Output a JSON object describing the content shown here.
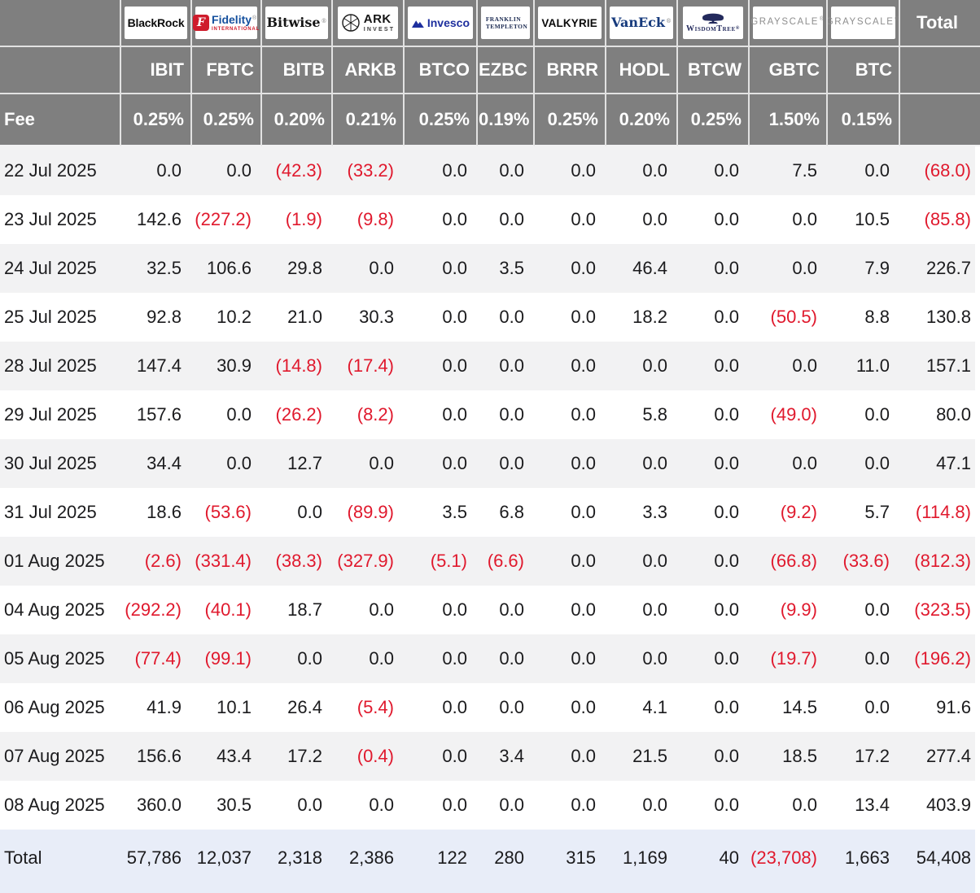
{
  "colors": {
    "header_bg": "#7f7f7f",
    "header_text": "#ffffff",
    "row_stripe": "#f2f2f3",
    "row_plain": "#ffffff",
    "total_row_bg": "#e8edf8",
    "negative_value": "#e0192d",
    "text": "#1b1b1d",
    "fidelity_red": "#cf1b2b"
  },
  "brands": {
    "blackrock": "BlackRock",
    "fidelity": {
      "initial": "F",
      "name": "Fidelity",
      "sub": "INTERNATIONAL",
      "reg": "®"
    },
    "bitwise": {
      "name": "Bitwise",
      "reg": "®"
    },
    "ark": {
      "name": "ARK",
      "sub": "INVEST"
    },
    "invesco": "Invesco",
    "franklin": {
      "line1": "FRANKLIN",
      "line2": "TEMPLETON"
    },
    "valkyrie": "VALKYRIE",
    "vaneck": {
      "name": "VanEck",
      "reg": "®"
    },
    "wisdomtree": {
      "name": "WisdomTree",
      "reg": "®"
    },
    "grayscale_gbtc": {
      "name": "GRAYSCALE",
      "reg": "®"
    },
    "grayscale_btc": {
      "name": "GRAYSCALE",
      "reg": "®"
    }
  },
  "chart_data": {
    "type": "table",
    "fee_row_label": "Fee",
    "total_column_label": "Total",
    "columns": [
      {
        "ticker": "IBIT",
        "fee": "0.25%",
        "issuer": "BlackRock"
      },
      {
        "ticker": "FBTC",
        "fee": "0.25%",
        "issuer": "Fidelity"
      },
      {
        "ticker": "BITB",
        "fee": "0.20%",
        "issuer": "Bitwise"
      },
      {
        "ticker": "ARKB",
        "fee": "0.21%",
        "issuer": "ARK Invest"
      },
      {
        "ticker": "BTCO",
        "fee": "0.25%",
        "issuer": "Invesco"
      },
      {
        "ticker": "EZBC",
        "fee": "0.19%",
        "issuer": "Franklin Templeton"
      },
      {
        "ticker": "BRRR",
        "fee": "0.25%",
        "issuer": "Valkyrie"
      },
      {
        "ticker": "HODL",
        "fee": "0.20%",
        "issuer": "VanEck"
      },
      {
        "ticker": "BTCW",
        "fee": "0.25%",
        "issuer": "WisdomTree"
      },
      {
        "ticker": "GBTC",
        "fee": "1.50%",
        "issuer": "Grayscale"
      },
      {
        "ticker": "BTC",
        "fee": "0.15%",
        "issuer": "Grayscale"
      }
    ],
    "rows": [
      {
        "date": "22 Jul 2025",
        "values": [
          "0.0",
          "0.0",
          "(42.3)",
          "(33.2)",
          "0.0",
          "0.0",
          "0.0",
          "0.0",
          "0.0",
          "7.5",
          "0.0",
          "(68.0)"
        ]
      },
      {
        "date": "23 Jul 2025",
        "values": [
          "142.6",
          "(227.2)",
          "(1.9)",
          "(9.8)",
          "0.0",
          "0.0",
          "0.0",
          "0.0",
          "0.0",
          "0.0",
          "10.5",
          "(85.8)"
        ]
      },
      {
        "date": "24 Jul 2025",
        "values": [
          "32.5",
          "106.6",
          "29.8",
          "0.0",
          "0.0",
          "3.5",
          "0.0",
          "46.4",
          "0.0",
          "0.0",
          "7.9",
          "226.7"
        ]
      },
      {
        "date": "25 Jul 2025",
        "values": [
          "92.8",
          "10.2",
          "21.0",
          "30.3",
          "0.0",
          "0.0",
          "0.0",
          "18.2",
          "0.0",
          "(50.5)",
          "8.8",
          "130.8"
        ]
      },
      {
        "date": "28 Jul 2025",
        "values": [
          "147.4",
          "30.9",
          "(14.8)",
          "(17.4)",
          "0.0",
          "0.0",
          "0.0",
          "0.0",
          "0.0",
          "0.0",
          "11.0",
          "157.1"
        ]
      },
      {
        "date": "29 Jul 2025",
        "values": [
          "157.6",
          "0.0",
          "(26.2)",
          "(8.2)",
          "0.0",
          "0.0",
          "0.0",
          "5.8",
          "0.0",
          "(49.0)",
          "0.0",
          "80.0"
        ]
      },
      {
        "date": "30 Jul 2025",
        "values": [
          "34.4",
          "0.0",
          "12.7",
          "0.0",
          "0.0",
          "0.0",
          "0.0",
          "0.0",
          "0.0",
          "0.0",
          "0.0",
          "47.1"
        ]
      },
      {
        "date": "31 Jul 2025",
        "values": [
          "18.6",
          "(53.6)",
          "0.0",
          "(89.9)",
          "3.5",
          "6.8",
          "0.0",
          "3.3",
          "0.0",
          "(9.2)",
          "5.7",
          "(114.8)"
        ]
      },
      {
        "date": "01 Aug 2025",
        "values": [
          "(2.6)",
          "(331.4)",
          "(38.3)",
          "(327.9)",
          "(5.1)",
          "(6.6)",
          "0.0",
          "0.0",
          "0.0",
          "(66.8)",
          "(33.6)",
          "(812.3)"
        ]
      },
      {
        "date": "04 Aug 2025",
        "values": [
          "(292.2)",
          "(40.1)",
          "18.7",
          "0.0",
          "0.0",
          "0.0",
          "0.0",
          "0.0",
          "0.0",
          "(9.9)",
          "0.0",
          "(323.5)"
        ]
      },
      {
        "date": "05 Aug 2025",
        "values": [
          "(77.4)",
          "(99.1)",
          "0.0",
          "0.0",
          "0.0",
          "0.0",
          "0.0",
          "0.0",
          "0.0",
          "(19.7)",
          "0.0",
          "(196.2)"
        ]
      },
      {
        "date": "06 Aug 2025",
        "values": [
          "41.9",
          "10.1",
          "26.4",
          "(5.4)",
          "0.0",
          "0.0",
          "0.0",
          "4.1",
          "0.0",
          "14.5",
          "0.0",
          "91.6"
        ]
      },
      {
        "date": "07 Aug 2025",
        "values": [
          "156.6",
          "43.4",
          "17.2",
          "(0.4)",
          "0.0",
          "3.4",
          "0.0",
          "21.5",
          "0.0",
          "18.5",
          "17.2",
          "277.4"
        ]
      },
      {
        "date": "08 Aug 2025",
        "values": [
          "360.0",
          "30.5",
          "0.0",
          "0.0",
          "0.0",
          "0.0",
          "0.0",
          "0.0",
          "0.0",
          "0.0",
          "13.4",
          "403.9"
        ]
      }
    ],
    "total_row": {
      "label": "Total",
      "values": [
        "57,786",
        "12,037",
        "2,318",
        "2,386",
        "122",
        "280",
        "315",
        "1,169",
        "40",
        "(23,708)",
        "1,663",
        "54,408"
      ]
    }
  }
}
